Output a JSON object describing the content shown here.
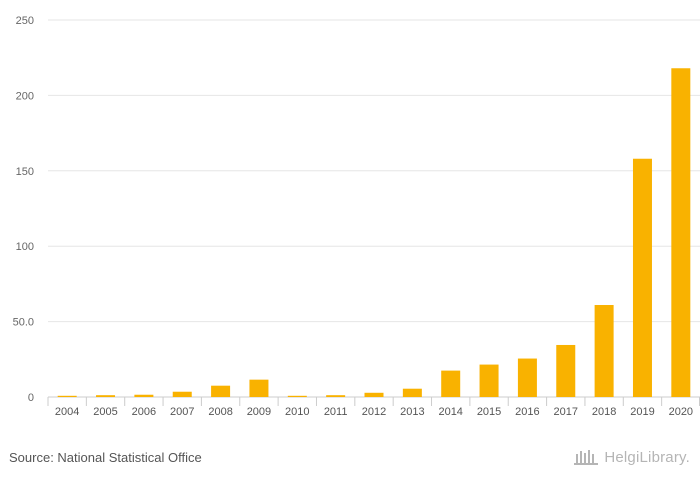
{
  "chart_data": {
    "type": "bar",
    "title": "",
    "xlabel": "",
    "ylabel": "",
    "categories": [
      "2004",
      "2005",
      "2006",
      "2007",
      "2008",
      "2009",
      "2010",
      "2011",
      "2012",
      "2013",
      "2014",
      "2015",
      "2016",
      "2017",
      "2018",
      "2019",
      "2020"
    ],
    "values": [
      0.8,
      1.2,
      1.5,
      3.5,
      7.5,
      11.5,
      0.8,
      1.2,
      2.8,
      5.5,
      17.5,
      21.5,
      25.5,
      34.5,
      61,
      158,
      218
    ],
    "ylim": [
      0,
      250
    ],
    "yticks": [
      0,
      50,
      100,
      150,
      200,
      250
    ],
    "ytick_labels": [
      "0",
      "50.0",
      "100",
      "150",
      "200",
      "250"
    ],
    "grid": true,
    "bar_color": "#f9b200"
  },
  "footer": {
    "source": "Source: National Statistical Office",
    "brand": "HelgiLibrary."
  }
}
